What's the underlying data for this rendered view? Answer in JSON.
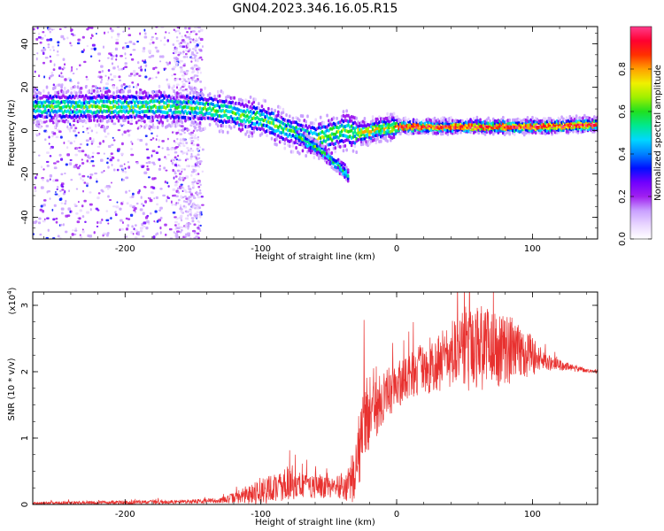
{
  "figure_title": "GN04.2023.346.16.05.R15",
  "colors": {
    "line": "#e8312f",
    "axis": "#000000",
    "colormap": [
      "#ffffff",
      "#e9d6ff",
      "#c9a0ff",
      "#a020f0",
      "#7000ff",
      "#0010ff",
      "#0080ff",
      "#00d8ff",
      "#00e890",
      "#20e020",
      "#a0f000",
      "#f0f000",
      "#ffa000",
      "#ff3000",
      "#ff0030",
      "#ff3c8c"
    ]
  },
  "chart_data": [
    {
      "type": "heatmap",
      "xlabel": "Height of straight line (km)",
      "ylabel": "Frequency (Hz)",
      "xlim": [
        -268,
        148
      ],
      "ylim": [
        -50,
        48
      ],
      "xticks": [
        -200,
        -100,
        0,
        100
      ],
      "yticks": [
        -40,
        -20,
        0,
        20,
        40
      ],
      "colorbar": {
        "label": "Normalized spectral amplitude",
        "range": [
          0,
          1
        ],
        "ticks": [
          0.0,
          0.2,
          0.4,
          0.6,
          0.8
        ]
      },
      "ridge": {
        "x": [
          -268,
          -240,
          -200,
          -160,
          -140,
          -120,
          -100,
          -80,
          -60,
          -50,
          -40,
          -30,
          -20,
          -10,
          0,
          20,
          50,
          100,
          148
        ],
        "freq": [
          11,
          11,
          11,
          11,
          10,
          8,
          5,
          0,
          -4,
          -2,
          0,
          -1,
          0,
          1,
          2,
          2,
          2,
          2,
          3
        ]
      },
      "tail_branch": {
        "x": [
          -75,
          -65,
          -55,
          -48,
          -42,
          -36
        ],
        "freq": [
          -2,
          -6,
          -10,
          -14,
          -17,
          -21
        ]
      }
    },
    {
      "type": "line",
      "xlabel": "Height of straight line (km)",
      "ylabel": "SNR (10 * v/v)",
      "y_scale_label": "(x10",
      "y_scale_exp": "4",
      "y_scale_close": ")",
      "xlim": [
        -268,
        148
      ],
      "ylim": [
        0,
        3.2
      ],
      "xticks": [
        -200,
        -100,
        0,
        100
      ],
      "yticks": [
        0,
        1,
        2,
        3
      ],
      "envelope": {
        "x": [
          -268,
          -200,
          -160,
          -130,
          -120,
          -100,
          -80,
          -70,
          -60,
          -50,
          -40,
          -32,
          -28,
          -24,
          -20,
          -10,
          0,
          10,
          20,
          30,
          40,
          50,
          60,
          70,
          80,
          90,
          100,
          110,
          120,
          130,
          140,
          148
        ],
        "base": [
          0.02,
          0.03,
          0.04,
          0.06,
          0.1,
          0.2,
          0.3,
          0.3,
          0.28,
          0.25,
          0.28,
          0.3,
          0.7,
          1.3,
          1.4,
          1.6,
          1.8,
          1.95,
          2.05,
          2.15,
          2.25,
          2.3,
          2.35,
          2.35,
          2.35,
          2.3,
          2.25,
          2.15,
          2.1,
          2.05,
          2.02,
          2.0
        ],
        "spread": [
          0.02,
          0.03,
          0.03,
          0.04,
          0.08,
          0.2,
          0.25,
          0.2,
          0.2,
          0.15,
          0.2,
          0.3,
          0.5,
          0.7,
          0.6,
          0.4,
          0.35,
          0.35,
          0.4,
          0.45,
          0.5,
          0.6,
          0.65,
          0.6,
          0.55,
          0.45,
          0.3,
          0.15,
          0.08,
          0.05,
          0.03,
          0.03
        ]
      }
    }
  ]
}
